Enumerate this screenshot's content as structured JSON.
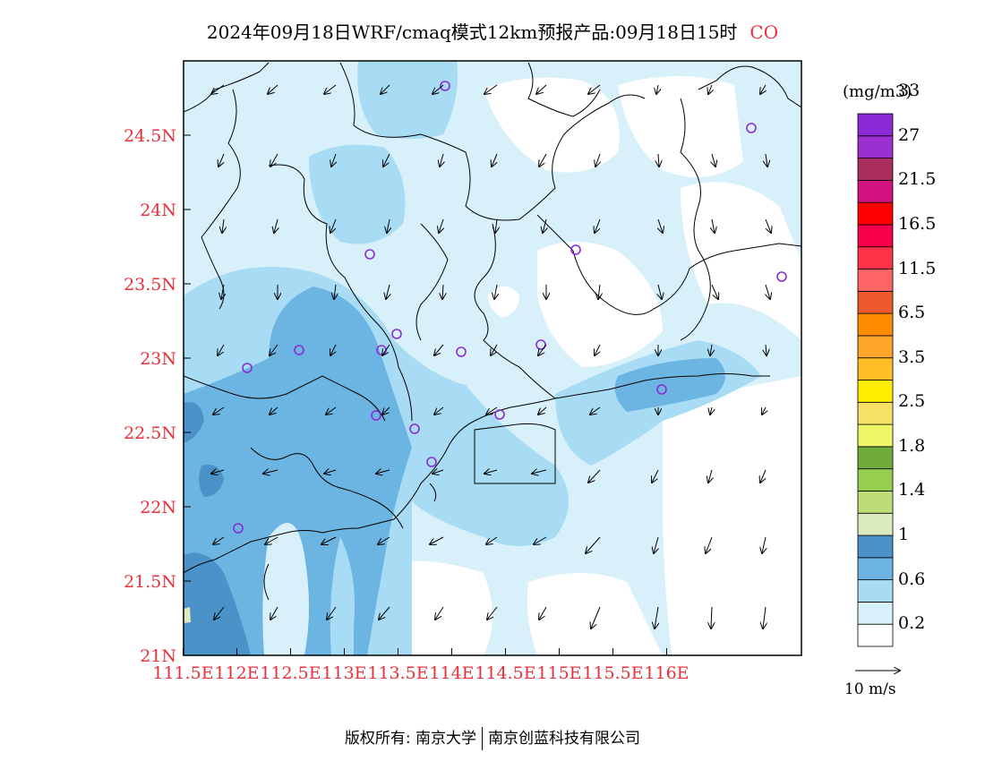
{
  "title": "2024年09月18日WRF/cmaq模式12km预报产品:09月18日15时",
  "species": "CO",
  "x_ticks": [
    "111.5E",
    "112E",
    "112.5E",
    "113E",
    "113.5E",
    "114E",
    "114.5E",
    "115E",
    "115.5E",
    "116E"
  ],
  "y_ticks": [
    "21N",
    "21.5N",
    "22N",
    "22.5N",
    "23N",
    "23.5N",
    "24N",
    "24.5N"
  ],
  "legend": {
    "unit": "(mg/m3)",
    "labels": [
      "0.2",
      "0.6",
      "1",
      "1.4",
      "1.8",
      "2.5",
      "3.5",
      "6.5",
      "11.5",
      "16.5",
      "21.5",
      "27",
      "33"
    ],
    "colors": [
      "#ffffff",
      "#d8f0fa",
      "#a8dcf5",
      "#6cb5e3",
      "#4a92c8",
      "#dcebbd",
      "#bedd78",
      "#96ce50",
      "#6fac39",
      "#eff568",
      "#f6e065",
      "#ffee00",
      "#ffbe24",
      "#ffa52a",
      "#ff8c00",
      "#ef5a2d",
      "#fe6464",
      "#ff3247",
      "#f7004c",
      "#ff0000",
      "#d2137f",
      "#a92e5d",
      "#9b2fcf",
      "#8a2bd6"
    ]
  },
  "wind_scale": "10 m/s",
  "copyright": {
    "left": "版权所有: 南京大学",
    "right": "南京创蓝科技有限公司"
  }
}
